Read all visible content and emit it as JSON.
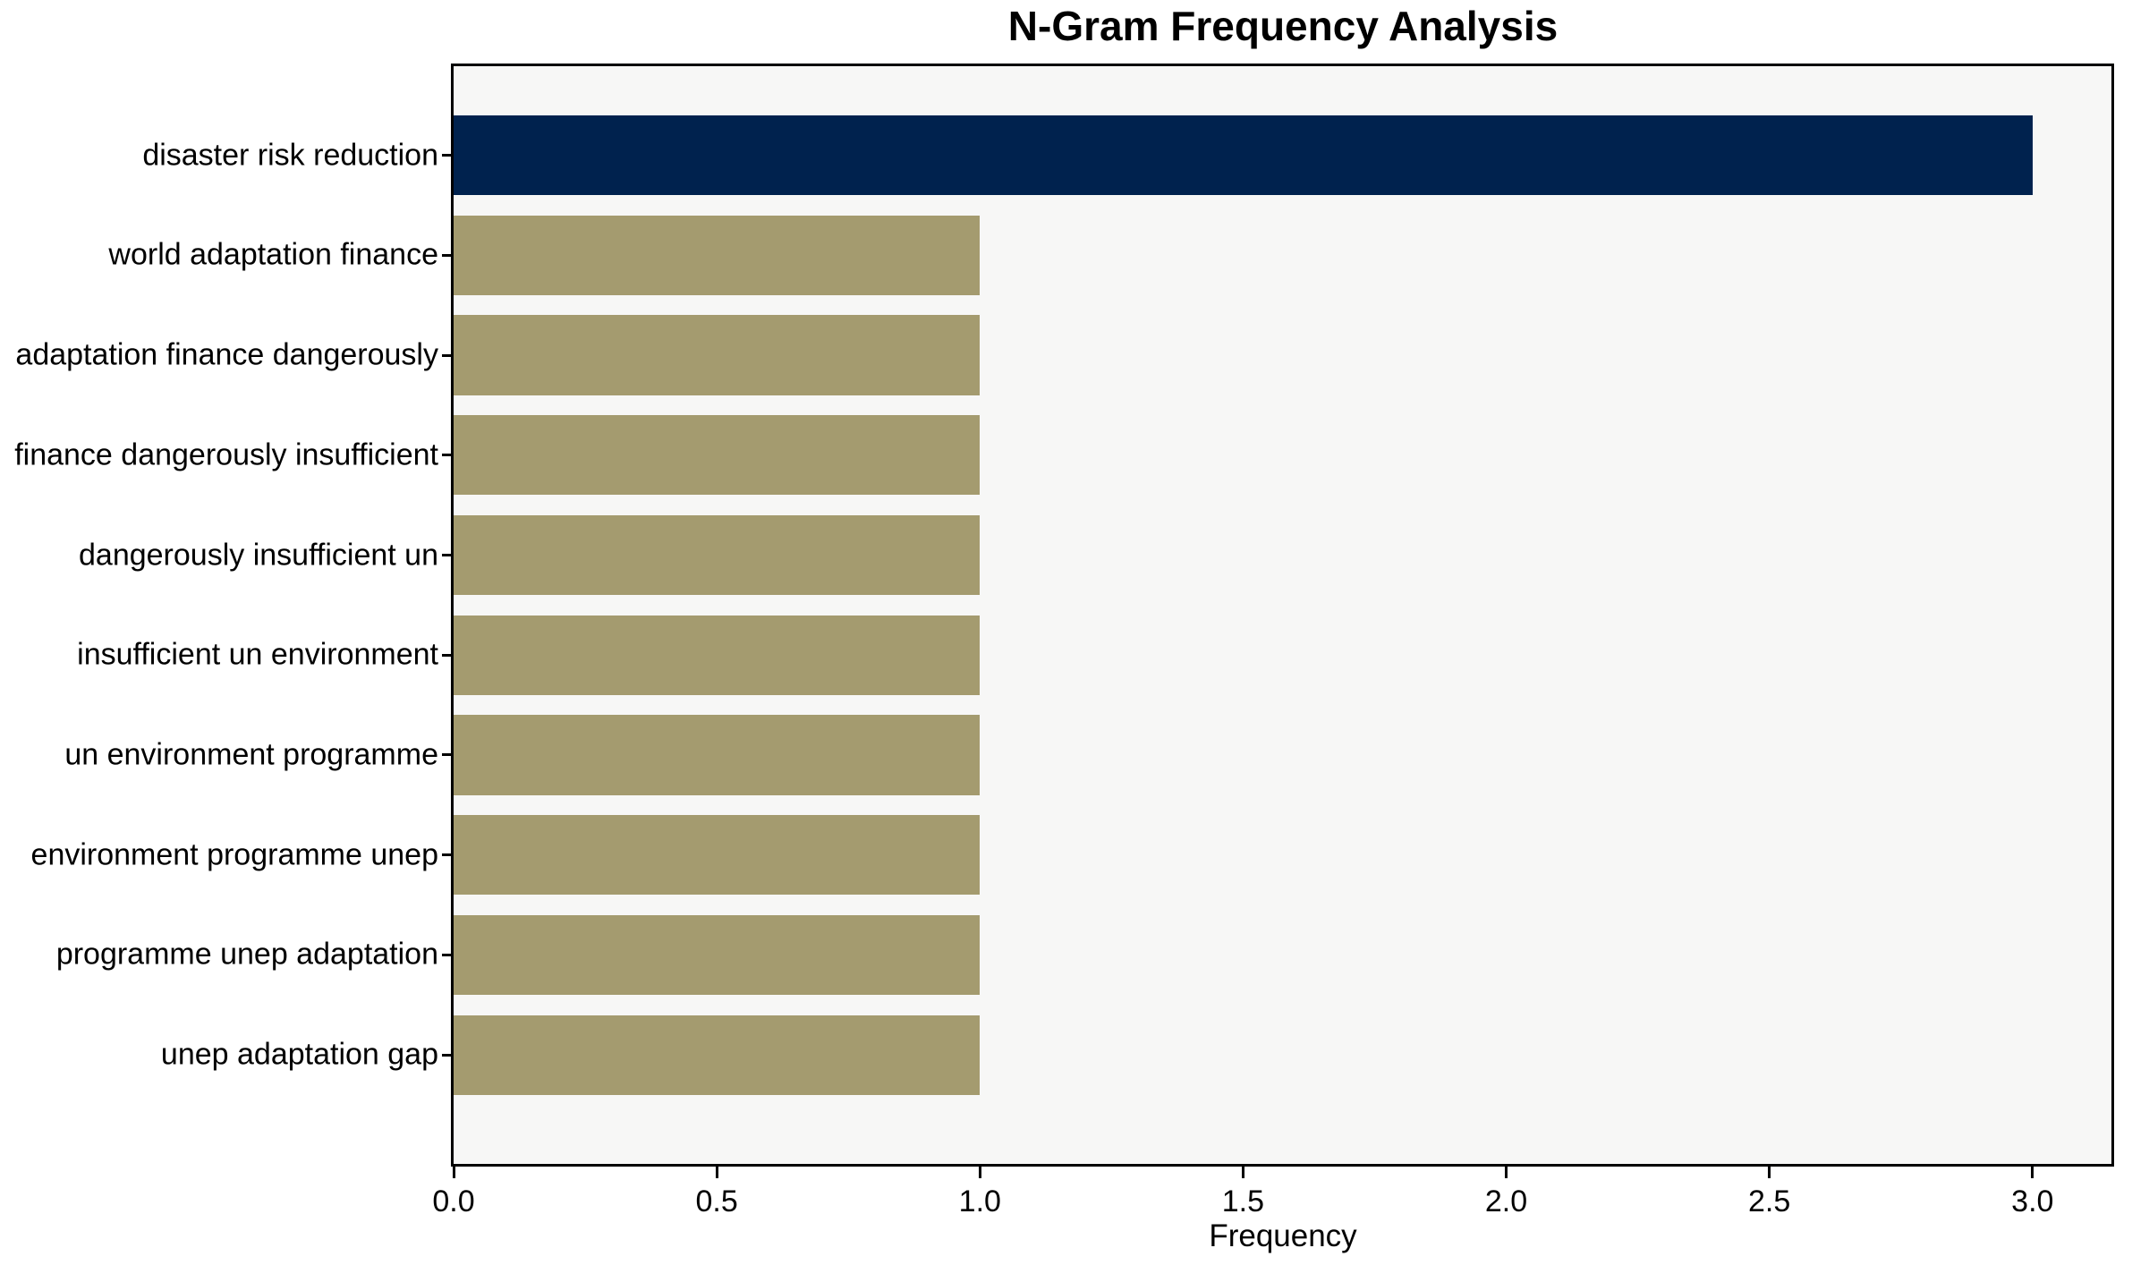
{
  "chart_data": {
    "type": "bar",
    "orientation": "horizontal",
    "title": "N-Gram Frequency Analysis",
    "xlabel": "Frequency",
    "ylabel": "",
    "categories": [
      "disaster risk reduction",
      "world adaptation finance",
      "adaptation finance dangerously",
      "finance dangerously insufficient",
      "dangerously insufficient un",
      "insufficient un environment",
      "un environment programme",
      "environment programme unep",
      "programme unep adaptation",
      "unep adaptation gap"
    ],
    "values": [
      3,
      1,
      1,
      1,
      1,
      1,
      1,
      1,
      1,
      1
    ],
    "bar_colors": [
      "#00224E",
      "#A49B6F",
      "#A49B6F",
      "#A49B6F",
      "#A49B6F",
      "#A49B6F",
      "#A49B6F",
      "#A49B6F",
      "#A49B6F",
      "#A49B6F"
    ],
    "xlim": [
      0,
      3.15
    ],
    "xticks": [
      0.0,
      0.5,
      1.0,
      1.5,
      2.0,
      2.5,
      3.0
    ],
    "xtick_labels": [
      "0.0",
      "0.5",
      "1.0",
      "1.5",
      "2.0",
      "2.5",
      "3.0"
    ],
    "grid": false,
    "legend": null,
    "colors": {
      "highlight_bar": "#00224E",
      "default_bar": "#A49B6F",
      "plot_background": "#F7F7F6",
      "figure_background": "#FFFFFF",
      "axis": "#000000",
      "text": "#000000"
    }
  }
}
